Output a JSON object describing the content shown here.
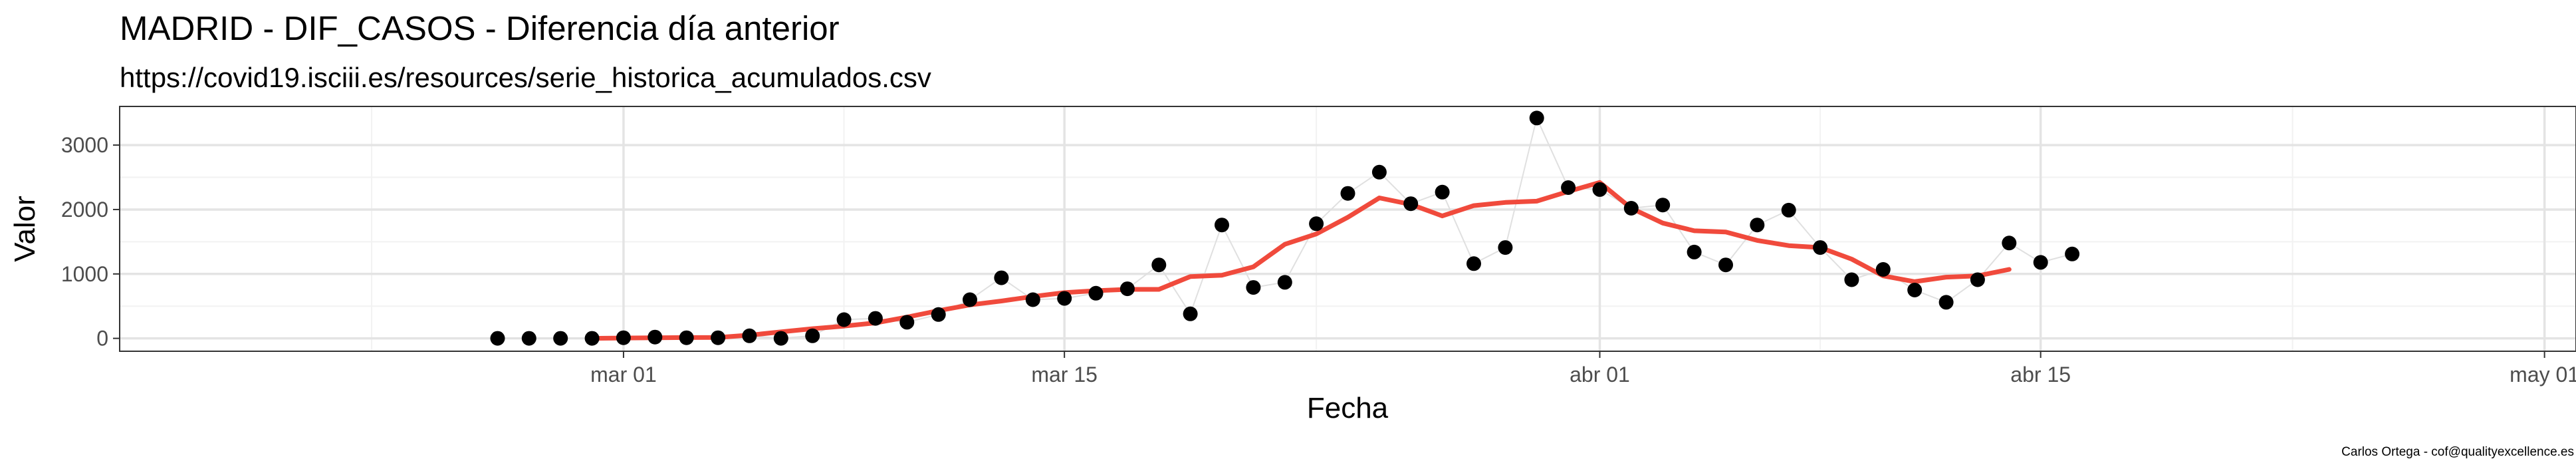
{
  "chart_data": {
    "type": "scatter",
    "title": "MADRID - DIF_CASOS - Diferencia día anterior",
    "subtitle": "https://covid19.isciii.es/resources/serie_historica_acumulados.csv",
    "xlabel": "Fecha",
    "ylabel": "Valor",
    "caption": "Carlos Ortega - cof@qualityexcellence.es",
    "xlim": [
      "2020-02-14",
      "2020-05-02"
    ],
    "ylim": [
      -200,
      3600
    ],
    "grid": true,
    "legend": "none",
    "x_ticks": [
      {
        "date": "2020-03-01",
        "label": "mar 01"
      },
      {
        "date": "2020-03-15",
        "label": "mar 15"
      },
      {
        "date": "2020-04-01",
        "label": "abr 01"
      },
      {
        "date": "2020-04-15",
        "label": "abr 15"
      },
      {
        "date": "2020-05-01",
        "label": "may 01"
      }
    ],
    "x_minor_ticks": [
      "2020-02-22",
      "2020-03-08",
      "2020-03-23",
      "2020-04-08",
      "2020-04-23"
    ],
    "y_ticks": [
      0,
      1000,
      2000,
      3000
    ],
    "y_minor_ticks": [
      500,
      1500,
      2500
    ],
    "series": [
      {
        "kind": "points",
        "color": "#000000",
        "points": [
          [
            "2020-02-26",
            0
          ],
          [
            "2020-02-27",
            0
          ],
          [
            "2020-02-28",
            0
          ],
          [
            "2020-02-29",
            0
          ],
          [
            "2020-03-01",
            10
          ],
          [
            "2020-03-02",
            20
          ],
          [
            "2020-03-03",
            10
          ],
          [
            "2020-03-04",
            10
          ],
          [
            "2020-03-05",
            40
          ],
          [
            "2020-03-06",
            0
          ],
          [
            "2020-03-07",
            40
          ],
          [
            "2020-03-08",
            290
          ],
          [
            "2020-03-09",
            310
          ],
          [
            "2020-03-10",
            250
          ],
          [
            "2020-03-11",
            370
          ],
          [
            "2020-03-12",
            600
          ],
          [
            "2020-03-13",
            940
          ],
          [
            "2020-03-14",
            600
          ],
          [
            "2020-03-15",
            620
          ],
          [
            "2020-03-16",
            700
          ],
          [
            "2020-03-17",
            770
          ],
          [
            "2020-03-18",
            1140
          ],
          [
            "2020-03-19",
            380
          ],
          [
            "2020-03-20",
            1760
          ],
          [
            "2020-03-21",
            790
          ],
          [
            "2020-03-22",
            870
          ],
          [
            "2020-03-23",
            1780
          ],
          [
            "2020-03-24",
            2250
          ],
          [
            "2020-03-25",
            2580
          ],
          [
            "2020-03-26",
            2090
          ],
          [
            "2020-03-27",
            2270
          ],
          [
            "2020-03-28",
            1160
          ],
          [
            "2020-03-29",
            1410
          ],
          [
            "2020-03-30",
            3420
          ],
          [
            "2020-03-31",
            2340
          ],
          [
            "2020-04-01",
            2310
          ],
          [
            "2020-04-02",
            2020
          ],
          [
            "2020-04-03",
            2070
          ],
          [
            "2020-04-04",
            1340
          ],
          [
            "2020-04-05",
            1140
          ],
          [
            "2020-04-06",
            1760
          ],
          [
            "2020-04-07",
            1990
          ],
          [
            "2020-04-08",
            1410
          ],
          [
            "2020-04-09",
            910
          ],
          [
            "2020-04-10",
            1070
          ],
          [
            "2020-04-11",
            750
          ],
          [
            "2020-04-12",
            560
          ],
          [
            "2020-04-13",
            910
          ],
          [
            "2020-04-14",
            1480
          ],
          [
            "2020-04-15",
            1180
          ],
          [
            "2020-04-16",
            1310
          ]
        ]
      },
      {
        "kind": "line",
        "color": "#f04a3c",
        "points": [
          [
            "2020-02-29",
            0
          ],
          [
            "2020-03-01",
            5
          ],
          [
            "2020-03-02",
            10
          ],
          [
            "2020-03-03",
            13
          ],
          [
            "2020-03-04",
            15
          ],
          [
            "2020-03-05",
            50
          ],
          [
            "2020-03-06",
            100
          ],
          [
            "2020-03-07",
            150
          ],
          [
            "2020-03-08",
            190
          ],
          [
            "2020-03-09",
            240
          ],
          [
            "2020-03-10",
            330
          ],
          [
            "2020-03-11",
            430
          ],
          [
            "2020-03-12",
            520
          ],
          [
            "2020-03-13",
            580
          ],
          [
            "2020-03-14",
            650
          ],
          [
            "2020-03-15",
            710
          ],
          [
            "2020-03-16",
            740
          ],
          [
            "2020-03-17",
            760
          ],
          [
            "2020-03-18",
            760
          ],
          [
            "2020-03-19",
            960
          ],
          [
            "2020-03-20",
            980
          ],
          [
            "2020-03-21",
            1110
          ],
          [
            "2020-03-22",
            1460
          ],
          [
            "2020-03-23",
            1620
          ],
          [
            "2020-03-24",
            1880
          ],
          [
            "2020-03-25",
            2180
          ],
          [
            "2020-03-26",
            2080
          ],
          [
            "2020-03-27",
            1900
          ],
          [
            "2020-03-28",
            2060
          ],
          [
            "2020-03-29",
            2110
          ],
          [
            "2020-03-30",
            2130
          ],
          [
            "2020-03-31",
            2280
          ],
          [
            "2020-04-01",
            2420
          ],
          [
            "2020-04-02",
            2020
          ],
          [
            "2020-04-03",
            1790
          ],
          [
            "2020-04-04",
            1670
          ],
          [
            "2020-04-05",
            1650
          ],
          [
            "2020-04-06",
            1520
          ],
          [
            "2020-04-07",
            1440
          ],
          [
            "2020-04-08",
            1410
          ],
          [
            "2020-04-09",
            1230
          ],
          [
            "2020-04-10",
            970
          ],
          [
            "2020-04-11",
            880
          ],
          [
            "2020-04-12",
            950
          ],
          [
            "2020-04-13",
            970
          ],
          [
            "2020-04-14",
            1070
          ]
        ]
      }
    ]
  }
}
